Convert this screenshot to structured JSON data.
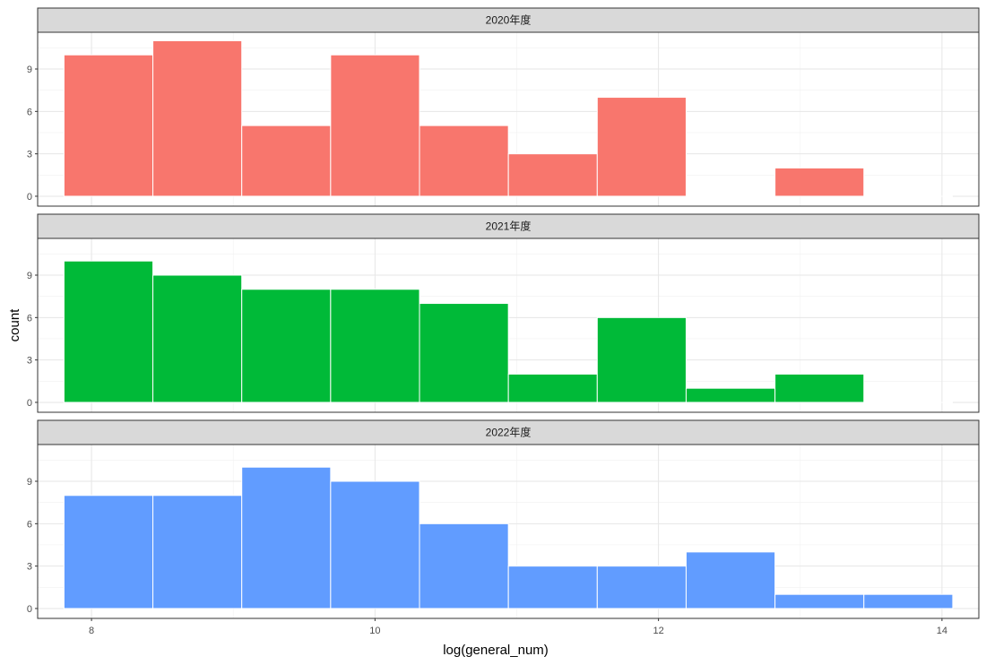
{
  "chart_data": {
    "type": "bar",
    "xlabel": "log(general_num)",
    "ylabel": "count",
    "bin_edges": [
      7.806,
      8.433,
      9.06,
      9.687,
      10.314,
      10.941,
      11.568,
      12.195,
      12.822,
      13.449,
      14.076
    ],
    "xlim": [
      7.62,
      14.26
    ],
    "x_ticks": [
      8,
      10,
      12,
      14
    ],
    "ylim": [
      -0.7,
      11.6
    ],
    "y_ticks": [
      0,
      3,
      6,
      9
    ],
    "grid": true,
    "legend": "none",
    "panels": [
      {
        "strip": "2020年度",
        "color": "#F8766D",
        "values": [
          10,
          11,
          5,
          10,
          5,
          3,
          7,
          0,
          2,
          0
        ]
      },
      {
        "strip": "2021年度",
        "color": "#00BA38",
        "values": [
          10,
          9,
          8,
          8,
          7,
          2,
          6,
          1,
          2,
          0
        ]
      },
      {
        "strip": "2022年度",
        "color": "#619CFF",
        "values": [
          8,
          8,
          10,
          9,
          6,
          3,
          3,
          4,
          1,
          1
        ]
      }
    ]
  }
}
